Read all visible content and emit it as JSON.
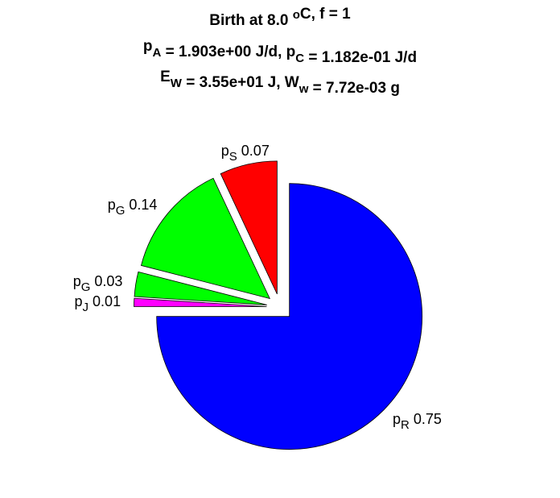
{
  "chart_data": {
    "type": "pie",
    "title": [
      [
        {
          "text": "Birth at 8.0 "
        },
        {
          "sup": "o"
        },
        {
          "text": "C, f = 1"
        }
      ],
      [
        {
          "text": "p"
        },
        {
          "sub": "A"
        },
        {
          "text": " = 1.903e+00 J/d, p"
        },
        {
          "sub": "C"
        },
        {
          "text": " = 1.182e-01 J/d"
        }
      ],
      [
        {
          "text": "E"
        },
        {
          "sub": "W"
        },
        {
          "text": " = 3.55e+01 J, W"
        },
        {
          "sub": "w"
        },
        {
          "text": " = 7.72e-03 g"
        }
      ]
    ],
    "categories": [
      {
        "base": "p",
        "sub": "R"
      },
      {
        "base": "p",
        "sub": "J"
      },
      {
        "base": "p",
        "sub": "G"
      },
      {
        "base": "p",
        "sub": "G"
      },
      {
        "base": "p",
        "sub": "S"
      }
    ],
    "values": [
      0.75,
      0.01,
      0.03,
      0.14,
      0.07
    ],
    "colors": [
      "#0000ff",
      "#ff00ff",
      "#00ff00",
      "#00ff00",
      "#ff0000"
    ],
    "exploded": true
  }
}
